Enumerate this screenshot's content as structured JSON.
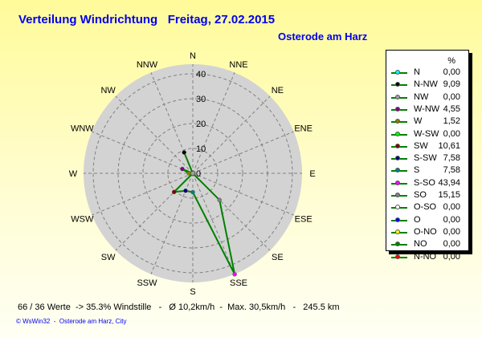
{
  "title": "Verteilung Windrichtung   Freitag, 27.02.2015",
  "subtitle": "Osterode am Harz",
  "footer": "66 / 36 Werte  -> 35.3% Windstille   -   Ø 10,2km/h  -  Max. 30,5km/h   -   245.5 km",
  "credit": "© WsWin32  -  Osterode am Harz, City",
  "chart_data": {
    "type": "radar",
    "directions": [
      "N",
      "NNE",
      "NE",
      "ENE",
      "E",
      "ESE",
      "SE",
      "SSE",
      "S",
      "SSW",
      "SW",
      "WSW",
      "W",
      "WNW",
      "NW",
      "NNW"
    ],
    "values": [
      0,
      0,
      0,
      0,
      0,
      0,
      15.15,
      43.94,
      7.58,
      7.58,
      10.61,
      0,
      1.52,
      4.55,
      0,
      9.09
    ],
    "rlim": [
      0,
      40
    ],
    "rticks": [
      "0",
      "10",
      "20",
      "30",
      "40"
    ],
    "grid": true,
    "line_color": "#008000",
    "legend_position": "right",
    "legend_header": "%",
    "legend": [
      {
        "name": "N",
        "value": "0,00",
        "color": "#00ffff"
      },
      {
        "name": "N-NW",
        "value": "9,09",
        "color": "#000000"
      },
      {
        "name": "NW",
        "value": "0,00",
        "color": "#a0a0a0"
      },
      {
        "name": "W-NW",
        "value": "4,55",
        "color": "#800080"
      },
      {
        "name": "W",
        "value": "1,52",
        "color": "#808000"
      },
      {
        "name": "W-SW",
        "value": "0,00",
        "color": "#00ff00"
      },
      {
        "name": "SW",
        "value": "10,61",
        "color": "#800000"
      },
      {
        "name": "S-SW",
        "value": "7,58",
        "color": "#000080"
      },
      {
        "name": "S",
        "value": "7,58",
        "color": "#008080"
      },
      {
        "name": "S-SO",
        "value": "43,94",
        "color": "#ff00ff"
      },
      {
        "name": "SO",
        "value": "15,15",
        "color": "#808080"
      },
      {
        "name": "O-SO",
        "value": "0,00",
        "color": "#ffffff"
      },
      {
        "name": "O",
        "value": "0,00",
        "color": "#0000ff"
      },
      {
        "name": "O-NO",
        "value": "0,00",
        "color": "#ffff00"
      },
      {
        "name": "NO",
        "value": "0,00",
        "color": "#008000"
      },
      {
        "name": "N-NO",
        "value": "0,00",
        "color": "#ff0000"
      }
    ],
    "point_colors": [
      "#ff0000",
      "#008000",
      "#008000",
      "#ffff00",
      "#0000ff",
      "#ffffff",
      "#808080",
      "#ff00ff",
      "#008080",
      "#000080",
      "#800000",
      "#00ff00",
      "#808000",
      "#800080",
      "#a0a0a0",
      "#000000"
    ]
  }
}
